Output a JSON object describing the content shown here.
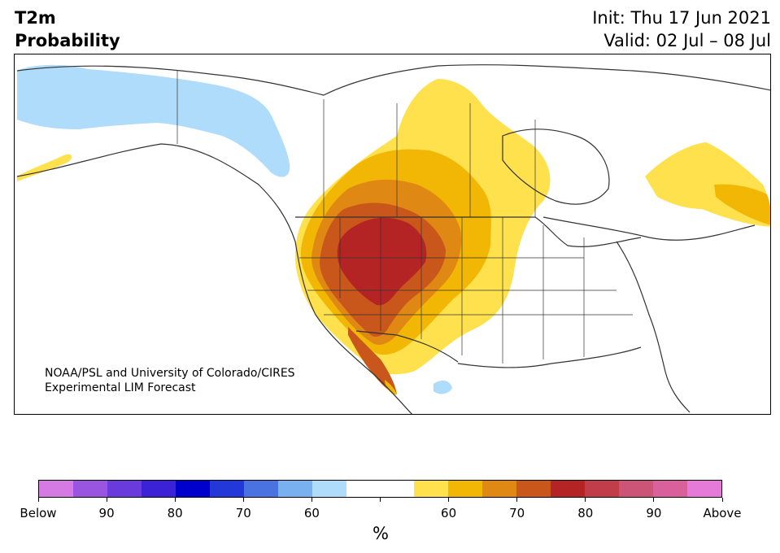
{
  "header": {
    "title_line1": "T2m",
    "title_line2": "Probability",
    "init": "Init: Thu 17 Jun 2021",
    "valid": "Valid: 02 Jul – 08 Jul"
  },
  "credit": {
    "line1": "NOAA/PSL and University of Colorado/CIRES",
    "line2": "Experimental LIM Forecast"
  },
  "colorbar": {
    "colors": [
      "#d57ae3",
      "#9955e0",
      "#6a3bdc",
      "#3b22d6",
      "#0000cc",
      "#2338d9",
      "#4a72e0",
      "#79b0ef",
      "#aedcfa",
      "#ffffff",
      "#ffffff",
      "#ffe14d",
      "#f2b705",
      "#df8814",
      "#c9561a",
      "#b52424",
      "#c13d4a",
      "#cc5577",
      "#d8619b",
      "#e57ad8"
    ],
    "tick_labels": [
      "Below",
      "90",
      "80",
      "70",
      "60",
      "",
      "60",
      "70",
      "80",
      "90",
      "Above"
    ],
    "unit": "%"
  },
  "map": {
    "categories": {
      "below_60": "#aedcfa",
      "above_50_60": "#ffe14d",
      "above_60_70": "#f2b705",
      "above_70_80": "#df8814",
      "above_80_90": "#c9561a",
      "above_90": "#b52424"
    }
  }
}
